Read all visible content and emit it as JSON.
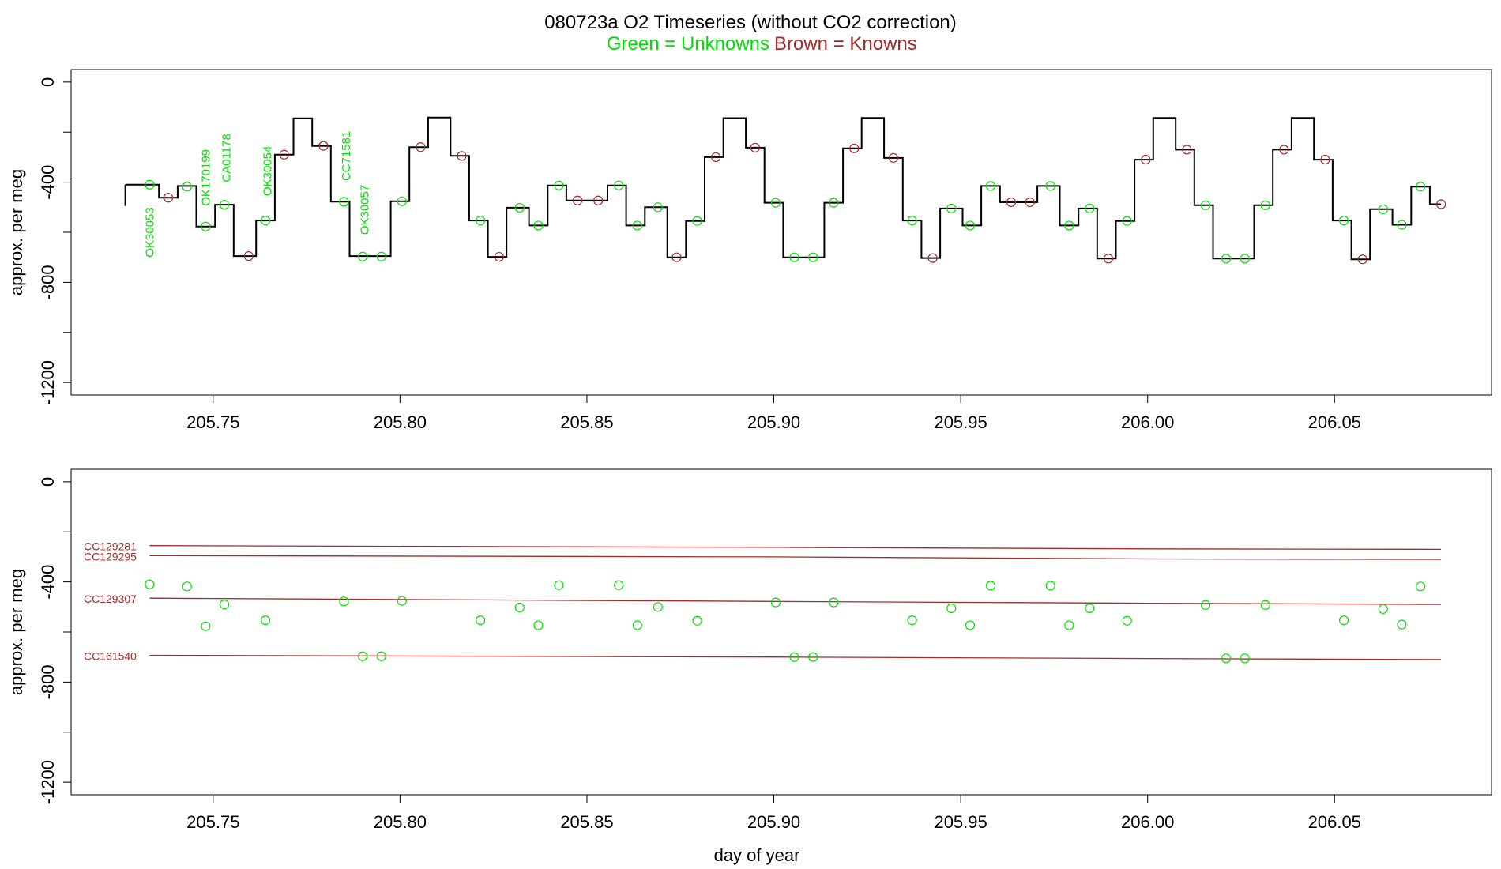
{
  "chart_data": {
    "title": "080723a   O2 Timeseries (without CO2 correction)",
    "legend": {
      "unknowns": "Green = Unknowns",
      "knowns": "Brown = Knowns"
    },
    "colors": {
      "unknown": "#00e000",
      "known": "#a52a2a",
      "trace": "#000000"
    },
    "xlabel": "day of year",
    "xlim": [
      205.712,
      206.092
    ],
    "xticks": [
      "205.75",
      "205.80",
      "205.85",
      "205.90",
      "205.95",
      "206.00",
      "206.05"
    ],
    "panels": [
      {
        "type": "line",
        "ylabel": "approx. per meg",
        "ylim": [
          -1250,
          50
        ],
        "yticks": [
          "0",
          "-400",
          "-800",
          "-1200"
        ],
        "trace_segments": [
          [
            205.7265,
            205.7355,
            -410
          ],
          [
            205.7355,
            205.7405,
            -462
          ],
          [
            205.7405,
            205.7455,
            -415
          ],
          [
            205.7455,
            205.7505,
            -577
          ],
          [
            205.7505,
            205.7555,
            -490
          ],
          [
            205.7555,
            205.7615,
            -695
          ],
          [
            205.7615,
            205.7665,
            -553
          ],
          [
            205.7665,
            205.7715,
            -290
          ],
          [
            205.7715,
            205.7765,
            -145
          ],
          [
            205.7765,
            205.7815,
            -255
          ],
          [
            205.7815,
            205.7865,
            -478
          ],
          [
            205.7865,
            205.7975,
            -695
          ],
          [
            205.7975,
            205.8025,
            -476
          ],
          [
            205.8025,
            205.8075,
            -260
          ],
          [
            205.8075,
            205.8135,
            -142
          ],
          [
            205.8135,
            205.8185,
            -295
          ],
          [
            205.8185,
            205.8235,
            -553
          ],
          [
            205.8235,
            205.8285,
            -698
          ],
          [
            205.8285,
            205.8345,
            -502
          ],
          [
            205.8345,
            205.8395,
            -573
          ],
          [
            205.8395,
            205.8445,
            -413
          ],
          [
            205.8445,
            205.8555,
            -473
          ],
          [
            205.8555,
            205.8605,
            -413
          ],
          [
            205.8605,
            205.8655,
            -573
          ],
          [
            205.8655,
            205.8715,
            -500
          ],
          [
            205.8715,
            205.8765,
            -700
          ],
          [
            205.8765,
            205.8815,
            -555
          ],
          [
            205.8815,
            205.8865,
            -300
          ],
          [
            205.8865,
            205.8925,
            -144
          ],
          [
            205.8925,
            205.8975,
            -262
          ],
          [
            205.8975,
            205.9025,
            -482
          ],
          [
            205.9025,
            205.9135,
            -700
          ],
          [
            205.9135,
            205.9185,
            -482
          ],
          [
            205.9185,
            205.9235,
            -265
          ],
          [
            205.9235,
            205.9295,
            -143
          ],
          [
            205.9295,
            205.9345,
            -303
          ],
          [
            205.9345,
            205.9395,
            -553
          ],
          [
            205.9395,
            205.9445,
            -703
          ],
          [
            205.9445,
            205.9505,
            -505
          ],
          [
            205.9505,
            205.9555,
            -573
          ],
          [
            205.9555,
            205.9605,
            -415
          ],
          [
            205.9605,
            205.9705,
            -480
          ],
          [
            205.9705,
            205.9765,
            -415
          ],
          [
            205.9765,
            205.9815,
            -573
          ],
          [
            205.9815,
            205.9865,
            -505
          ],
          [
            205.9865,
            205.9915,
            -705
          ],
          [
            205.9915,
            205.9965,
            -555
          ],
          [
            205.9965,
            206.0015,
            -310
          ],
          [
            206.0015,
            206.0075,
            -143
          ],
          [
            206.0075,
            206.0125,
            -270
          ],
          [
            206.0125,
            206.0175,
            -492
          ],
          [
            206.0175,
            206.0285,
            -705
          ],
          [
            206.0285,
            206.0335,
            -492
          ],
          [
            206.0335,
            206.0385,
            -270
          ],
          [
            206.0385,
            206.0445,
            -143
          ],
          [
            206.0445,
            206.0495,
            -310
          ],
          [
            206.0495,
            206.0545,
            -553
          ],
          [
            206.0545,
            206.0595,
            -708
          ],
          [
            206.0595,
            206.0655,
            -508
          ],
          [
            206.0655,
            206.0705,
            -570
          ],
          [
            206.0705,
            206.0755,
            -418
          ],
          [
            206.0755,
            206.0785,
            -488
          ]
        ],
        "unknown_points": [
          [
            205.733,
            -410
          ],
          [
            205.743,
            -418
          ],
          [
            205.748,
            -577
          ],
          [
            205.753,
            -490
          ],
          [
            205.764,
            -553
          ],
          [
            205.785,
            -478
          ],
          [
            205.79,
            -697
          ],
          [
            205.795,
            -697
          ],
          [
            205.8005,
            -476
          ],
          [
            205.8215,
            -553
          ],
          [
            205.832,
            -502
          ],
          [
            205.837,
            -573
          ],
          [
            205.8425,
            -413
          ],
          [
            205.8585,
            -413
          ],
          [
            205.8635,
            -573
          ],
          [
            205.869,
            -500
          ],
          [
            205.8795,
            -555
          ],
          [
            205.9005,
            -482
          ],
          [
            205.9055,
            -700
          ],
          [
            205.9105,
            -700
          ],
          [
            205.916,
            -482
          ],
          [
            205.937,
            -553
          ],
          [
            205.9475,
            -505
          ],
          [
            205.9525,
            -573
          ],
          [
            205.958,
            -415
          ],
          [
            205.974,
            -415
          ],
          [
            205.979,
            -573
          ],
          [
            205.9845,
            -505
          ],
          [
            205.9945,
            -555
          ],
          [
            206.0155,
            -492
          ],
          [
            206.021,
            -705
          ],
          [
            206.026,
            -705
          ],
          [
            206.0315,
            -492
          ],
          [
            206.0525,
            -553
          ],
          [
            206.063,
            -508
          ],
          [
            206.068,
            -570
          ],
          [
            206.073,
            -418
          ]
        ],
        "known_points": [
          [
            205.738,
            -462
          ],
          [
            205.7595,
            -695
          ],
          [
            205.769,
            -290
          ],
          [
            205.7795,
            -255
          ],
          [
            205.8055,
            -260
          ],
          [
            205.8165,
            -295
          ],
          [
            205.8265,
            -698
          ],
          [
            205.8475,
            -473
          ],
          [
            205.853,
            -473
          ],
          [
            205.874,
            -700
          ],
          [
            205.8845,
            -300
          ],
          [
            205.895,
            -262
          ],
          [
            205.9215,
            -265
          ],
          [
            205.932,
            -303
          ],
          [
            205.9425,
            -703
          ],
          [
            205.9635,
            -480
          ],
          [
            205.9685,
            -480
          ],
          [
            205.9895,
            -705
          ],
          [
            205.9995,
            -310
          ],
          [
            206.0105,
            -270
          ],
          [
            206.0365,
            -270
          ],
          [
            206.0475,
            -310
          ],
          [
            206.0575,
            -708
          ],
          [
            206.0785,
            -488
          ]
        ],
        "annotations": [
          {
            "text": "OK30053",
            "x": 205.733,
            "y": -700
          },
          {
            "text": "OK170199",
            "x": 205.748,
            "y": -495
          },
          {
            "text": "CA01178",
            "x": 205.7535,
            "y": -400
          },
          {
            "text": "OK30054",
            "x": 205.7645,
            "y": -455
          },
          {
            "text": "CC71581",
            "x": 205.7855,
            "y": -395
          },
          {
            "text": "OK30057",
            "x": 205.7905,
            "y": -610
          }
        ]
      },
      {
        "type": "scatter",
        "ylabel": "approx. per meg",
        "ylim": [
          -1250,
          50
        ],
        "yticks": [
          "0",
          "-400",
          "-800",
          "-1200"
        ],
        "reference_lines": [
          {
            "name": "CC129281",
            "values": [
              [
                205.733,
                -255
              ],
              [
                205.9,
                -262
              ],
              [
                206.0,
                -268
              ],
              [
                206.0785,
                -270
              ]
            ]
          },
          {
            "name": "CC129295",
            "values": [
              [
                205.733,
                -295
              ],
              [
                205.9,
                -300
              ],
              [
                206.0,
                -308
              ],
              [
                206.0785,
                -310
              ]
            ]
          },
          {
            "name": "CC129307",
            "values": [
              [
                205.733,
                -465
              ],
              [
                205.9,
                -478
              ],
              [
                206.0,
                -485
              ],
              [
                206.0785,
                -490
              ]
            ]
          },
          {
            "name": "CC161540",
            "values": [
              [
                205.733,
                -693
              ],
              [
                205.9,
                -700
              ],
              [
                206.0,
                -706
              ],
              [
                206.0785,
                -710
              ]
            ]
          }
        ],
        "unknown_points": [
          [
            205.733,
            -410
          ],
          [
            205.743,
            -418
          ],
          [
            205.748,
            -577
          ],
          [
            205.753,
            -490
          ],
          [
            205.764,
            -553
          ],
          [
            205.785,
            -478
          ],
          [
            205.79,
            -697
          ],
          [
            205.795,
            -697
          ],
          [
            205.8005,
            -476
          ],
          [
            205.8215,
            -553
          ],
          [
            205.832,
            -502
          ],
          [
            205.837,
            -573
          ],
          [
            205.8425,
            -413
          ],
          [
            205.8585,
            -413
          ],
          [
            205.8635,
            -573
          ],
          [
            205.869,
            -500
          ],
          [
            205.8795,
            -555
          ],
          [
            205.9005,
            -482
          ],
          [
            205.9055,
            -700
          ],
          [
            205.9105,
            -700
          ],
          [
            205.916,
            -482
          ],
          [
            205.937,
            -553
          ],
          [
            205.9475,
            -505
          ],
          [
            205.9525,
            -573
          ],
          [
            205.958,
            -415
          ],
          [
            205.974,
            -415
          ],
          [
            205.979,
            -573
          ],
          [
            205.9845,
            -505
          ],
          [
            205.9945,
            -555
          ],
          [
            206.0155,
            -492
          ],
          [
            206.021,
            -705
          ],
          [
            206.026,
            -705
          ],
          [
            206.0315,
            -492
          ],
          [
            206.0525,
            -553
          ],
          [
            206.063,
            -508
          ],
          [
            206.068,
            -570
          ],
          [
            206.073,
            -418
          ]
        ]
      }
    ]
  }
}
